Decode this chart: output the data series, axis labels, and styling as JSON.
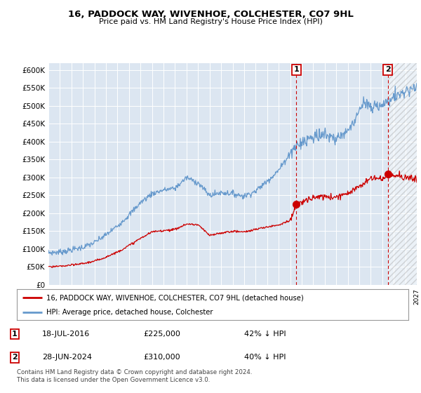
{
  "title": "16, PADDOCK WAY, WIVENHOE, COLCHESTER, CO7 9HL",
  "subtitle": "Price paid vs. HM Land Registry's House Price Index (HPI)",
  "bg_color": "#dce6f1",
  "hpi_color": "#6699cc",
  "price_color": "#cc0000",
  "vline_color": "#cc0000",
  "ylim": [
    0,
    620000
  ],
  "yticks": [
    0,
    50000,
    100000,
    150000,
    200000,
    250000,
    300000,
    350000,
    400000,
    450000,
    500000,
    550000,
    600000
  ],
  "ytick_labels": [
    "£0",
    "£50K",
    "£100K",
    "£150K",
    "£200K",
    "£250K",
    "£300K",
    "£350K",
    "£400K",
    "£450K",
    "£500K",
    "£550K",
    "£600K"
  ],
  "sale1_date": 2016.54,
  "sale1_price": 225000,
  "sale2_date": 2024.49,
  "sale2_price": 310000,
  "legend_line1": "16, PADDOCK WAY, WIVENHOE, COLCHESTER, CO7 9HL (detached house)",
  "legend_line2": "HPI: Average price, detached house, Colchester",
  "table_row1": [
    "1",
    "18-JUL-2016",
    "£225,000",
    "42% ↓ HPI"
  ],
  "table_row2": [
    "2",
    "28-JUN-2024",
    "£310,000",
    "40% ↓ HPI"
  ],
  "footnote": "Contains HM Land Registry data © Crown copyright and database right 2024.\nThis data is licensed under the Open Government Licence v3.0.",
  "xmin": 1995,
  "xmax": 2027
}
